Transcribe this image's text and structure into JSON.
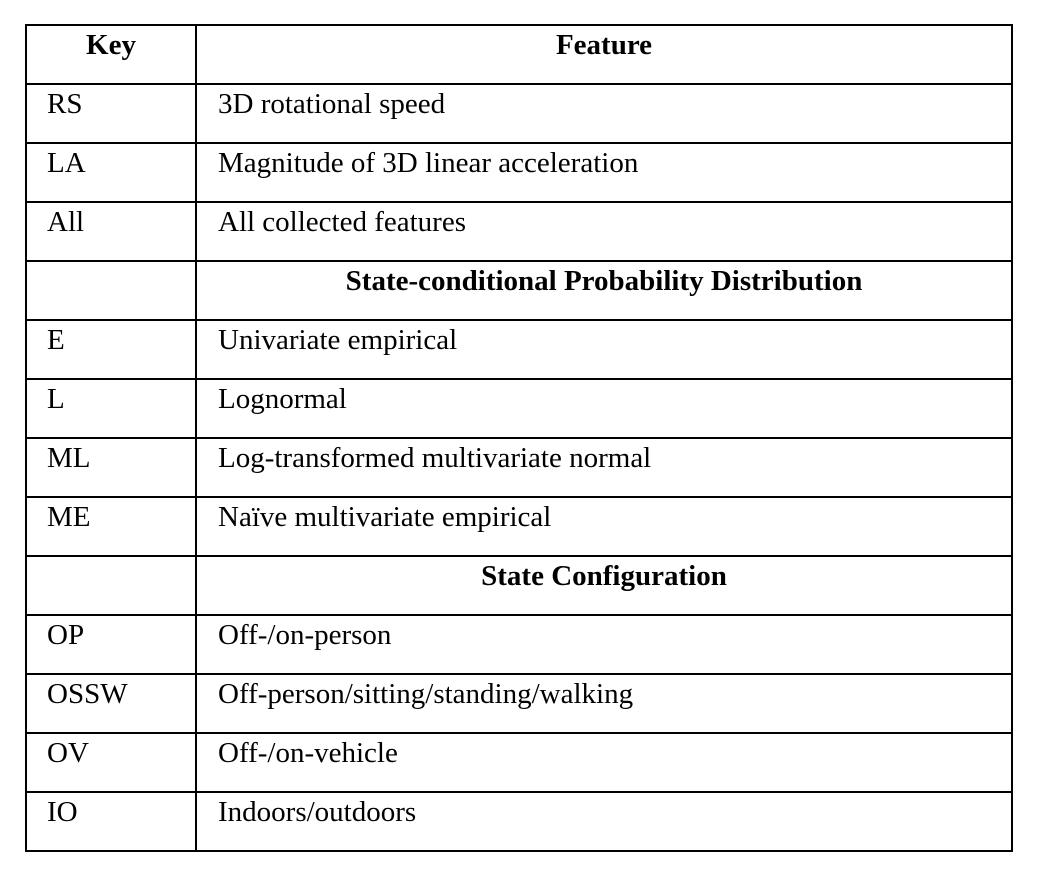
{
  "table": {
    "headers": {
      "key": "Key",
      "feature": "Feature"
    },
    "features": [
      {
        "key": "RS",
        "desc": "3D rotational speed"
      },
      {
        "key": "LA",
        "desc": "Magnitude of 3D linear acceleration"
      },
      {
        "key": "All",
        "desc": "All collected features"
      }
    ],
    "distribution_section": "State-conditional Probability Distribution",
    "distributions": [
      {
        "key": "E",
        "desc": "Univariate empirical"
      },
      {
        "key": "L",
        "desc": "Lognormal"
      },
      {
        "key": "ML",
        "desc": "Log-transformed multivariate normal"
      },
      {
        "key": "ME",
        "desc": "Naïve multivariate empirical"
      }
    ],
    "configuration_section": "State Configuration",
    "configurations": [
      {
        "key": "OP",
        "desc": "Off-/on-person"
      },
      {
        "key": "OSSW",
        "desc": "Off-person/sitting/standing/walking"
      },
      {
        "key": "OV",
        "desc": "Off-/on-vehicle"
      },
      {
        "key": "IO",
        "desc": "Indoors/outdoors"
      }
    ]
  }
}
